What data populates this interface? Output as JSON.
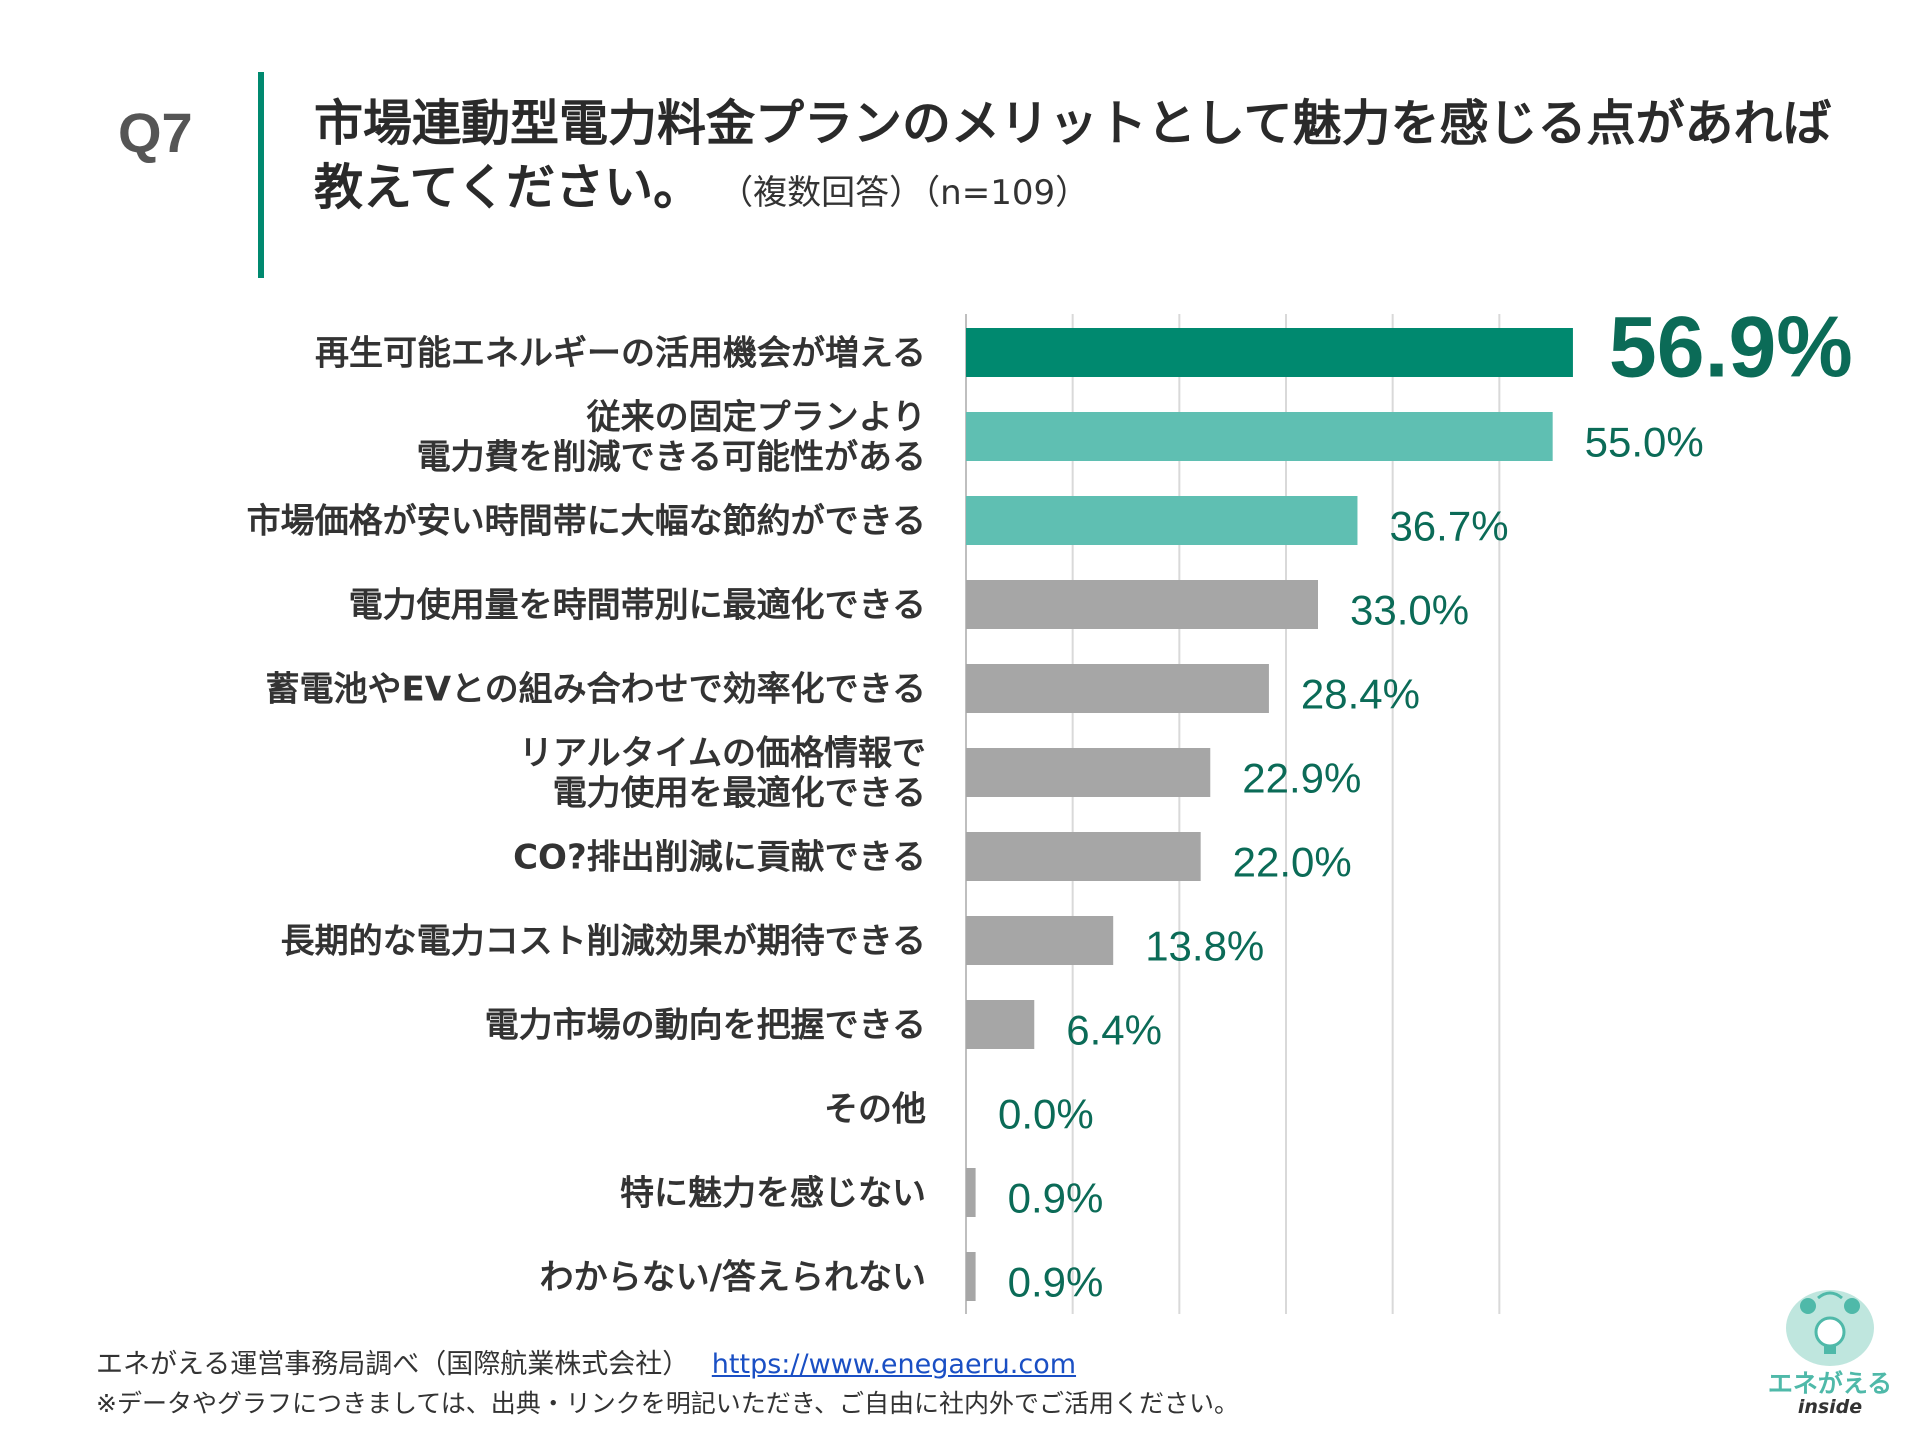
{
  "header": {
    "question_number": "Q7",
    "title": "市場連動型電力料金プランのメリットとして魅力を感じる点があれば教えてください。",
    "note": "（複数回答）（n=109）"
  },
  "colors": {
    "accent": "#00896f",
    "highlight": "#5fbfb2",
    "default_bar": "#a6a6a6",
    "value_text": "#0b6b57",
    "grid": "#d9d9d9"
  },
  "chart_data": {
    "type": "bar",
    "orientation": "horizontal",
    "title": "市場連動型電力料金プランのメリットとして魅力を感じる点があれば教えてください。",
    "xlim": [
      0,
      60
    ],
    "grid": true,
    "categories": [
      "再生可能エネルギーの活用機会が増える",
      "従来の固定プランより\n電力費を削減できる可能性がある",
      "市場価格が安い時間帯に大幅な節約ができる",
      "電力使用量を時間帯別に最適化できる",
      "蓄電池やEVとの組み合わせで効率化できる",
      "リアルタイムの価格情報で\n電力使用を最適化できる",
      "CO?排出削減に貢献できる",
      "長期的な電力コスト削減効果が期待できる",
      "電力市場の動向を把握できる",
      "その他",
      "特に魅力を感じない",
      "わからない/答えられない"
    ],
    "values": [
      56.9,
      55.0,
      36.7,
      33.0,
      28.4,
      22.9,
      22.0,
      13.8,
      6.4,
      0.0,
      0.9,
      0.9
    ],
    "labels": [
      "56.9%",
      "55.0%",
      "36.7%",
      "33.0%",
      "28.4%",
      "22.9%",
      "22.0%",
      "13.8%",
      "6.4%",
      "0.0%",
      "0.9%",
      "0.9%"
    ]
  },
  "footer": {
    "source": "エネがえる運営事務局調べ（国際航業株式会社）",
    "link": "https://www.enegaeru.com",
    "note": "※データやグラフにつきましては、出典・リンクを明記いただき、ご自由に社内外でご活用ください。"
  },
  "logo": {
    "name": "エネがえる",
    "sub": "inside"
  }
}
